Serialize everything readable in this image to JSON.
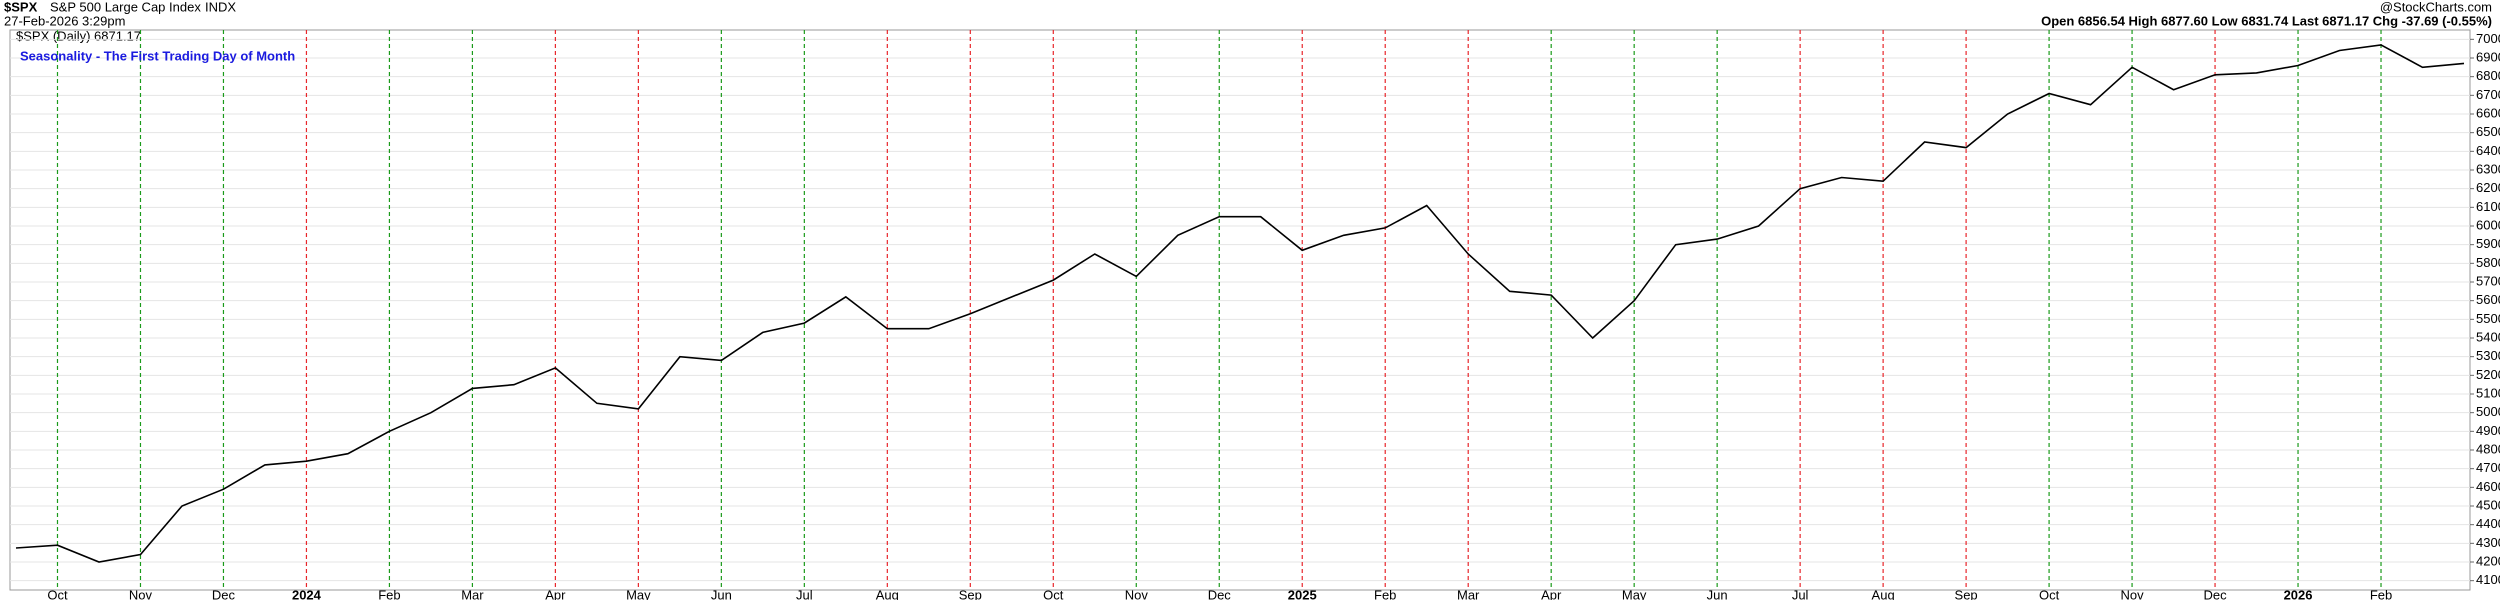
{
  "header": {
    "symbol": "$SPX",
    "name": "S&P 500 Large Cap Index",
    "exchange": "INDX",
    "timestamp": "27-Feb-2026 3:29pm",
    "legend": "$SPX (Daily) 6871.17",
    "quote": "Open 6856.54 High 6877.60 Low 6831.74 Last 6871.17 Chg -37.69 (-0.55%)",
    "credit": "@StockCharts.com"
  },
  "chart_data": {
    "type": "line",
    "title": "Seasonality - The First Trading Day of Month",
    "categories": [
      null,
      "Oct",
      null,
      "Nov",
      null,
      "Dec",
      null,
      "2024",
      null,
      "Feb",
      null,
      "Mar",
      null,
      "Apr",
      null,
      "May",
      null,
      "Jun",
      null,
      "Jul",
      null,
      "Aug",
      null,
      "Sep",
      null,
      "Oct",
      null,
      "Nov",
      null,
      "Dec",
      null,
      "2025",
      null,
      "Feb",
      null,
      "Mar",
      null,
      "Apr",
      null,
      "May",
      null,
      "Jun",
      null,
      "Jul",
      null,
      "Aug",
      null,
      "Sep",
      null,
      "Oct",
      null,
      "Nov",
      null,
      "Dec",
      null,
      "2026",
      null,
      "Feb",
      null,
      null
    ],
    "values": [
      4275,
      4290,
      4200,
      4240,
      4500,
      4590,
      4720,
      4740,
      4780,
      4900,
      5000,
      5130,
      5150,
      5240,
      5050,
      5020,
      5300,
      5280,
      5430,
      5480,
      5620,
      5450,
      5450,
      5530,
      5620,
      5710,
      5850,
      5730,
      5950,
      6050,
      6050,
      5870,
      5950,
      5990,
      6110,
      5850,
      5650,
      5630,
      5400,
      5600,
      5900,
      5930,
      6000,
      6200,
      6260,
      6240,
      6450,
      6420,
      6600,
      6710,
      6650,
      6850,
      6730,
      6810,
      6820,
      6860,
      6940,
      6970,
      6850,
      6871.17
    ],
    "color": "#000000",
    "month_line_colors": [
      "#1a9a1a",
      "#1a9a1a",
      "#1a9a1a",
      "#e8262b",
      "#1a9a1a",
      "#1a9a1a",
      "#e8262b",
      "#e8262b",
      "#1a9a1a",
      "#1a9a1a",
      "#e8262b",
      "#e8262b",
      "#e8262b",
      "#1a9a1a",
      "#1a9a1a",
      "#e8262b",
      "#e8262b",
      "#e8262b",
      "#1a9a1a",
      "#1a9a1a",
      "#1a9a1a",
      "#e8262b",
      "#e8262b",
      "#e8262b",
      "#1a9a1a",
      "#1a9a1a",
      "#e8262b",
      "#1a9a1a",
      "#1a9a1a"
    ],
    "ylim": [
      4050,
      7050
    ],
    "yticks": [
      4100,
      4200,
      4300,
      4400,
      4500,
      4600,
      4700,
      4800,
      4900,
      5000,
      5100,
      5200,
      5300,
      5400,
      5500,
      5600,
      5700,
      5800,
      5900,
      6000,
      6100,
      6200,
      6300,
      6400,
      6500,
      6600,
      6700,
      6800,
      6900,
      7000
    ],
    "grid": true
  }
}
